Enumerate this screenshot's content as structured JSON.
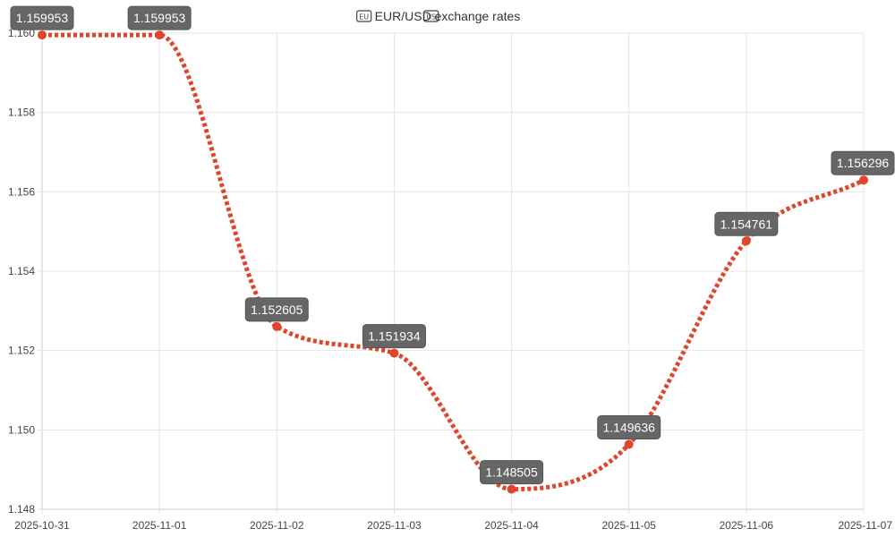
{
  "chart_data": {
    "type": "line",
    "title": "EUR/USD exchange rates",
    "title_icons": [
      "eu-flag-icon",
      "us-flag-icon"
    ],
    "x": [
      "2025-10-31",
      "2025-11-01",
      "2025-11-02",
      "2025-11-03",
      "2025-11-04",
      "2025-11-05",
      "2025-11-06",
      "2025-11-07"
    ],
    "series": [
      {
        "values": [
          1.159953,
          1.159953,
          1.152605,
          1.151934,
          1.148505,
          1.149636,
          1.154761,
          1.156296
        ],
        "data_labels": [
          "1.159953",
          "1.159953",
          "1.152605",
          "1.151934",
          "1.148505",
          "1.149636",
          "1.154761",
          "1.156296"
        ],
        "color": "#e0442a",
        "line_style": "dotted",
        "smooth": true
      }
    ],
    "ylim": [
      1.148,
      1.16
    ],
    "yticks": [
      1.148,
      1.15,
      1.152,
      1.154,
      1.156,
      1.158,
      1.16
    ],
    "ytick_labels": [
      "1.148",
      "1.150",
      "1.152",
      "1.154",
      "1.156",
      "1.158",
      "1.160"
    ],
    "xlabel": "",
    "ylabel": "",
    "grid": true,
    "legend": "none",
    "colors": {
      "line": "#e0442a",
      "grid": "#e4e4e4",
      "axis": "#cccccc",
      "label_bg": "#666666",
      "label_text": "#ffffff"
    }
  }
}
